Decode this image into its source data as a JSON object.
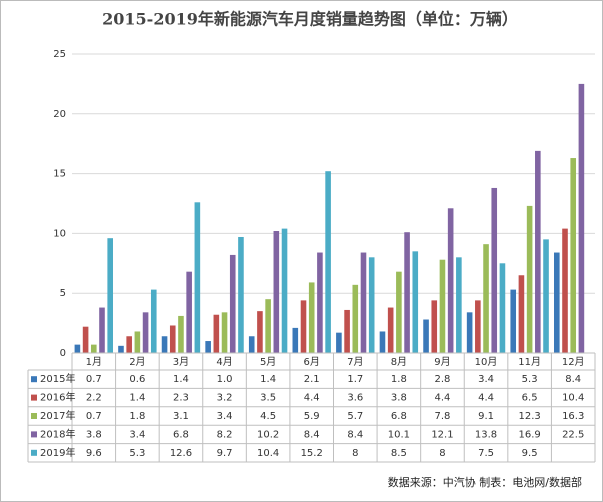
{
  "chart_data": {
    "type": "bar",
    "title": "2015-2019年新能源汽车月度销量趋势图（单位：万辆）",
    "categories": [
      "1月",
      "2月",
      "3月",
      "4月",
      "5月",
      "6月",
      "7月",
      "8月",
      "9月",
      "10月",
      "11月",
      "12月"
    ],
    "series": [
      {
        "name": "2015年",
        "color": "#3a78b8",
        "values": [
          0.7,
          0.6,
          1.4,
          1.0,
          1.4,
          2.1,
          1.7,
          1.8,
          2.8,
          3.4,
          5.3,
          8.4
        ],
        "value_labels": [
          "0.7",
          "0.6",
          "1.4",
          "1.0",
          "1.4",
          "2.1",
          "1.7",
          "1.8",
          "2.8",
          "3.4",
          "5.3",
          "8.4"
        ]
      },
      {
        "name": "2016年",
        "color": "#c0504d",
        "values": [
          2.2,
          1.4,
          2.3,
          3.2,
          3.5,
          4.4,
          3.6,
          3.8,
          4.4,
          4.4,
          6.5,
          10.4
        ]
      },
      {
        "name": "2017年",
        "color": "#9bbb59",
        "values": [
          0.7,
          1.8,
          3.1,
          3.4,
          4.5,
          5.9,
          5.7,
          6.8,
          7.8,
          9.1,
          12.3,
          16.3
        ]
      },
      {
        "name": "2018年",
        "color": "#8064a2",
        "values": [
          3.8,
          3.4,
          6.8,
          8.2,
          10.2,
          8.4,
          8.4,
          10.1,
          12.1,
          13.8,
          16.9,
          22.5
        ]
      },
      {
        "name": "2019年",
        "color": "#4bacc6",
        "values": [
          9.6,
          5.3,
          12.6,
          9.7,
          10.4,
          15.2,
          8,
          8.5,
          8,
          7.5,
          9.5,
          null
        ]
      }
    ],
    "ylim": [
      0,
      25
    ],
    "yticks": [
      0,
      5,
      10,
      15,
      20,
      25
    ],
    "grid": true,
    "footnote": "数据来源：中汽协  制表：电池网/数据部"
  }
}
